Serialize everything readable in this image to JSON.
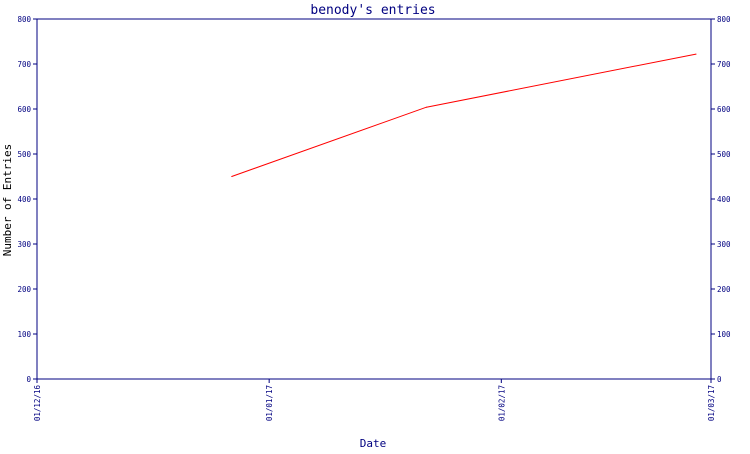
{
  "chart_data": {
    "type": "line",
    "title": "benody's entries",
    "xlabel": "Date",
    "ylabel": "Number of Entries",
    "x_ticks": [
      "01/12/16",
      "01/01/17",
      "01/02/17",
      "01/03/17"
    ],
    "y_ticks": [
      0,
      100,
      200,
      300,
      400,
      500,
      600,
      700,
      800
    ],
    "ylim": [
      0,
      800
    ],
    "xlim": [
      "2016-12-01",
      "2017-03-01"
    ],
    "grid": false,
    "right_axis_mirrored": true,
    "series": [
      {
        "color": "#ff0000",
        "x": [
          "2016-12-27",
          "2017-01-22",
          "2017-02-27"
        ],
        "y": [
          450,
          604,
          722
        ]
      }
    ]
  },
  "colors": {
    "axis": "#000080",
    "title": "#000080",
    "series": "#ff0000"
  }
}
